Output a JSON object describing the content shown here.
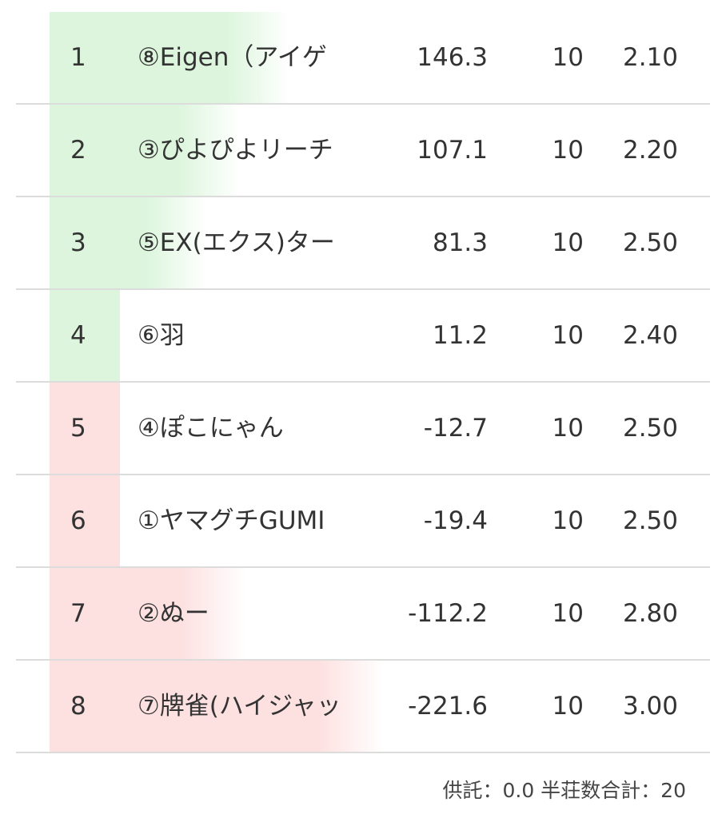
{
  "colors": {
    "positive": "#dcf5dc",
    "negative": "#fde1e1"
  },
  "rows": [
    {
      "rank": "1",
      "name": "⑧Eigen（アイゲ",
      "score": "146.3",
      "games": "10",
      "avg": "2.10"
    },
    {
      "rank": "2",
      "name": "③ぴよぴよリーチ",
      "score": "107.1",
      "games": "10",
      "avg": "2.20"
    },
    {
      "rank": "3",
      "name": "⑤EX(エクス)ター",
      "score": "81.3",
      "games": "10",
      "avg": "2.50"
    },
    {
      "rank": "4",
      "name": "⑥羽",
      "score": "11.2",
      "games": "10",
      "avg": "2.40"
    },
    {
      "rank": "5",
      "name": "④ぽこにゃん",
      "score": "-12.7",
      "games": "10",
      "avg": "2.50"
    },
    {
      "rank": "6",
      "name": "①ヤマグチGUMI",
      "score": "-19.4",
      "games": "10",
      "avg": "2.50"
    },
    {
      "rank": "7",
      "name": "②ぬー",
      "score": "-112.2",
      "games": "10",
      "avg": "2.80"
    },
    {
      "rank": "8",
      "name": "⑦牌雀(ハイジャッ",
      "score": "-221.6",
      "games": "10",
      "avg": "3.00"
    }
  ],
  "footer": "供託：0.0 半荘数合計：20"
}
